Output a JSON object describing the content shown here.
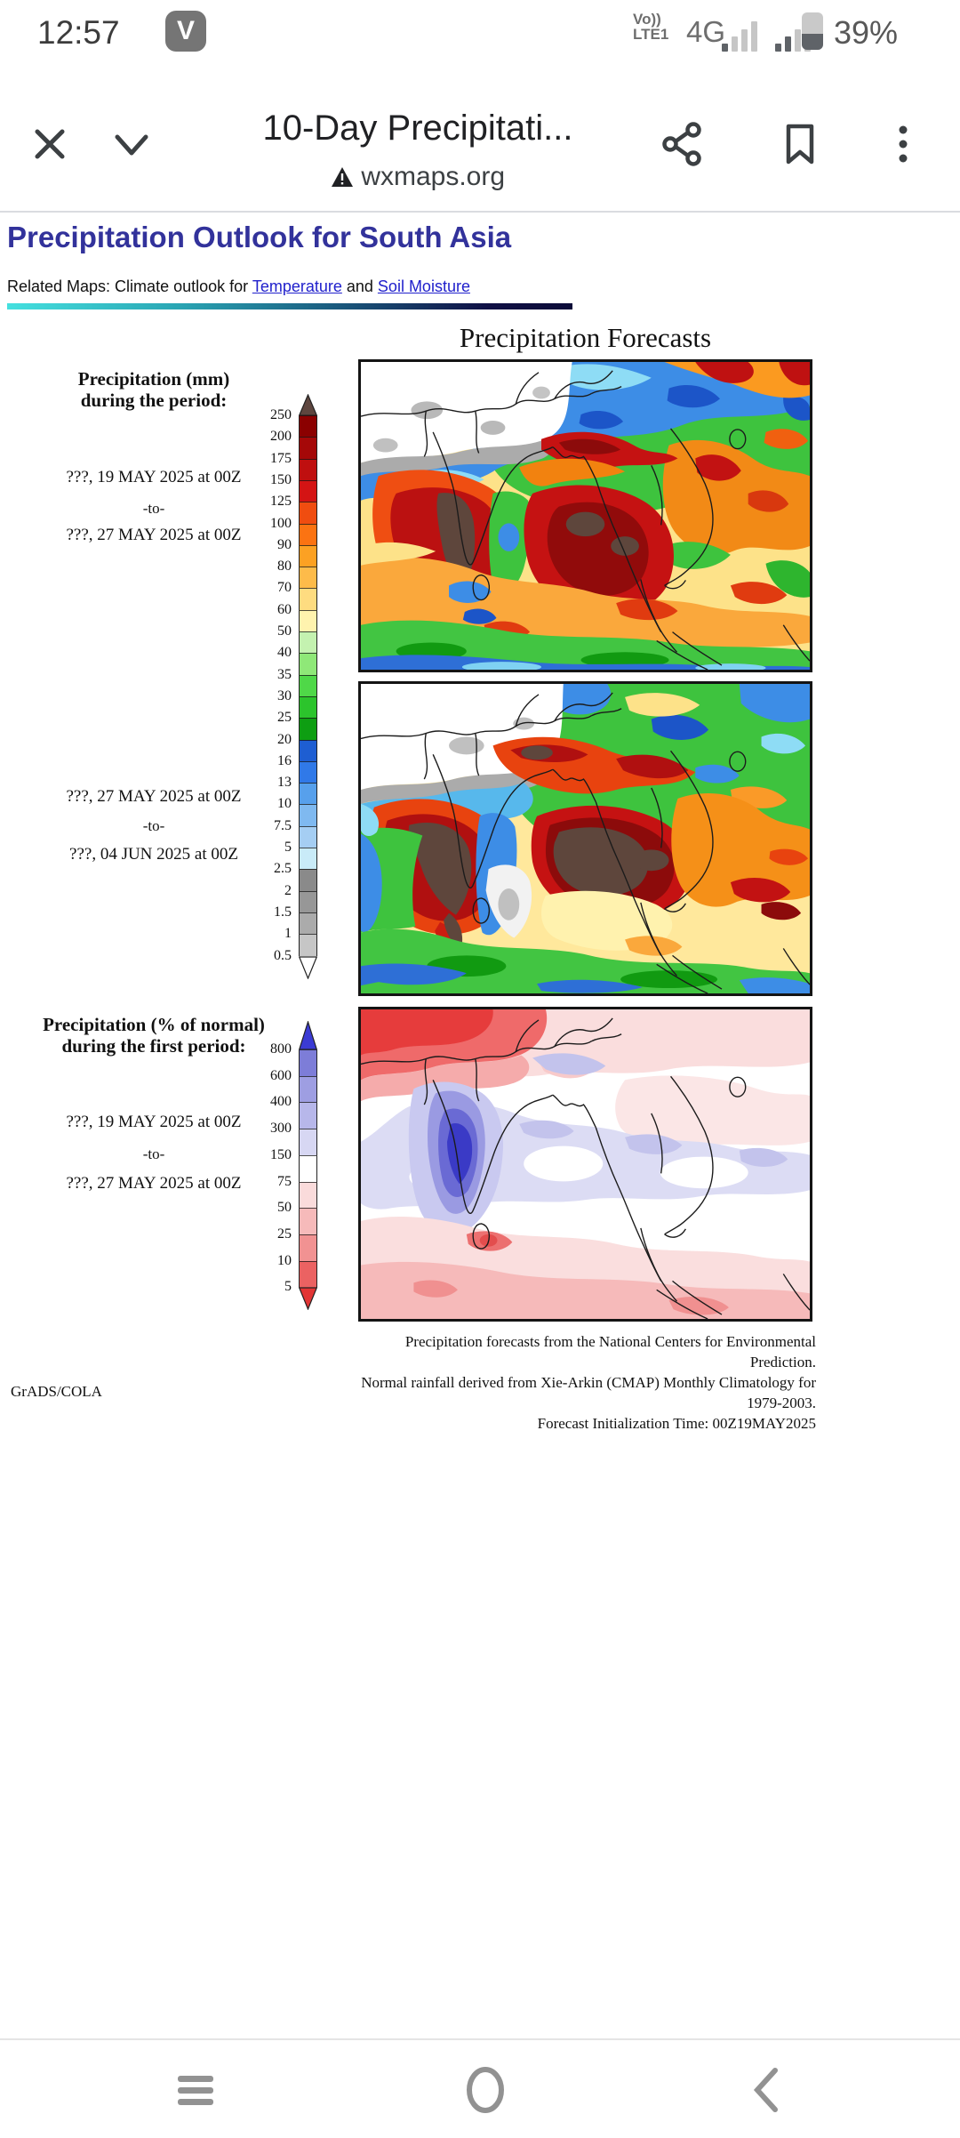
{
  "status_bar": {
    "time": "12:57",
    "app_badge": "V",
    "volte_top": "Vo))",
    "volte_bottom": "LTE1",
    "network": "4G",
    "battery": "39%"
  },
  "browser": {
    "page_title": "10-Day Precipitati...",
    "site": "wxmaps.org"
  },
  "article": {
    "heading": "Precipitation Outlook for South Asia",
    "related_prefix": "Related Maps: Climate outlook for ",
    "link_temperature": "Temperature",
    "related_and": " and ",
    "link_soil": "Soil Moisture"
  },
  "figure": {
    "title": "Precipitation Forecasts",
    "panel_mm_label1": "Precipitation (mm)",
    "panel_mm_label2": "during the period:",
    "period1_start": "???, 19 MAY 2025 at 00Z",
    "period1_sep": "-to-",
    "period1_end": "???, 27 MAY 2025 at 00Z",
    "period2_start": "???, 27 MAY 2025 at 00Z",
    "period2_sep": "-to-",
    "period2_end": "???, 04 JUN 2025 at 00Z",
    "panel_pct_label1": "Precipitation (% of normal)",
    "panel_pct_label2": "during the first period:",
    "period3_start": "???, 19 MAY 2025 at 00Z",
    "period3_sep": "-to-",
    "period3_end": "???, 27 MAY 2025 at 00Z",
    "caption1": "Precipitation forecasts from the National Centers for Environmental Prediction.",
    "caption2": "Normal rainfall derived from Xie-Arkin (CMAP) Monthly Climatology for 1979-2003.",
    "caption3": "Forecast Initialization Time: 00Z19MAY2025",
    "credit": "GrADS/COLA"
  },
  "colorbars": {
    "mm": {
      "ticks": [
        "250",
        "200",
        "175",
        "150",
        "125",
        "100",
        "90",
        "80",
        "70",
        "60",
        "50",
        "40",
        "35",
        "30",
        "25",
        "20",
        "16",
        "13",
        "10",
        "7.5",
        "5",
        "2.5",
        "2",
        "1.5",
        "1",
        "0.5"
      ],
      "segment_colors": [
        "#8b0000",
        "#a50808",
        "#bf0f0f",
        "#d41414",
        "#f04d10",
        "#fb7312",
        "#fca123",
        "#fdbb4a",
        "#fedc80",
        "#fff3ae",
        "#c4f2b0",
        "#8fe878",
        "#4fd848",
        "#2cc42c",
        "#0e9e12",
        "#1e5ed2",
        "#3079e8",
        "#57a0ec",
        "#7fb9f0",
        "#a5cef3",
        "#c9ebf8",
        "#8a8a8a",
        "#979797",
        "#ababab",
        "#c6c6c6"
      ],
      "top_arrow_color": "#5e463f",
      "bottom_arrow_color": "#ffffff"
    },
    "pct": {
      "ticks": [
        "800",
        "600",
        "400",
        "300",
        "150",
        "75",
        "50",
        "25",
        "10",
        "5"
      ],
      "segment_colors": [
        "#7d7dd8",
        "#9e9ee2",
        "#b7b7ea",
        "#d7d7f3",
        "#ffffff",
        "#fadbdb",
        "#f6baba",
        "#f19292",
        "#eb6262"
      ],
      "top_arrow_color": "#3b3bd4",
      "bottom_arrow_color": "#e23535"
    }
  },
  "chart_data": [
    {
      "type": "heatmap",
      "title": "Precipitation (mm) during the period ???, 19 MAY 2025 at 00Z -to- ???, 27 MAY 2025 at 00Z",
      "region": "South Asia",
      "units": "mm",
      "legend_position": "left",
      "legend_values": [
        250,
        200,
        175,
        150,
        125,
        100,
        90,
        80,
        70,
        60,
        50,
        40,
        35,
        30,
        25,
        20,
        16,
        13,
        10,
        7.5,
        5,
        2.5,
        2,
        1.5,
        1,
        0.5
      ],
      "notes": "Contour heatmap; dry white/gray over Tibetan plateau, blue band along Himalayas, heavy rain (dark red/brown >250mm) over west coast of India and Bay of Bengal, orange/yellow southern ocean band, green and blue bands at bottom"
    },
    {
      "type": "heatmap",
      "title": "Precipitation (mm) during the period ???, 27 MAY 2025 at 00Z -to- ???, 04 JUN 2025 at 00Z",
      "region": "South Asia",
      "units": "mm",
      "legend_position": "left",
      "legend_values": [
        250,
        200,
        175,
        150,
        125,
        100,
        90,
        80,
        70,
        60,
        50,
        40,
        35,
        30,
        25,
        20,
        16,
        13,
        10,
        7.5,
        5,
        2.5,
        2,
        1.5,
        1,
        0.5
      ],
      "notes": "Contour heatmap; larger >250mm brown maxima over Western Ghats and central Bay of Bengal/Myanmar, dry white patch over interior south India, more green over east Asia"
    },
    {
      "type": "heatmap",
      "title": "Precipitation (% of normal) during the first period ???, 19 MAY 2025 at 00Z -to- ???, 27 MAY 2025 at 00Z",
      "region": "South Asia",
      "units": "% of normal",
      "legend_position": "left",
      "legend_values": [
        800,
        600,
        400,
        300,
        150,
        75,
        50,
        25,
        10,
        5
      ],
      "notes": "Mostly near-normal white; strong below-normal red over northwest/Tibet corner, strong above-normal blue-purple maximum over west coast of India, pale pink below-normal band across the south"
    }
  ],
  "colors": {
    "heading_accent": "#32329b",
    "link": "#2121cc",
    "gradient_start": "#45e0df",
    "gradient_end": "#0c0c38"
  }
}
